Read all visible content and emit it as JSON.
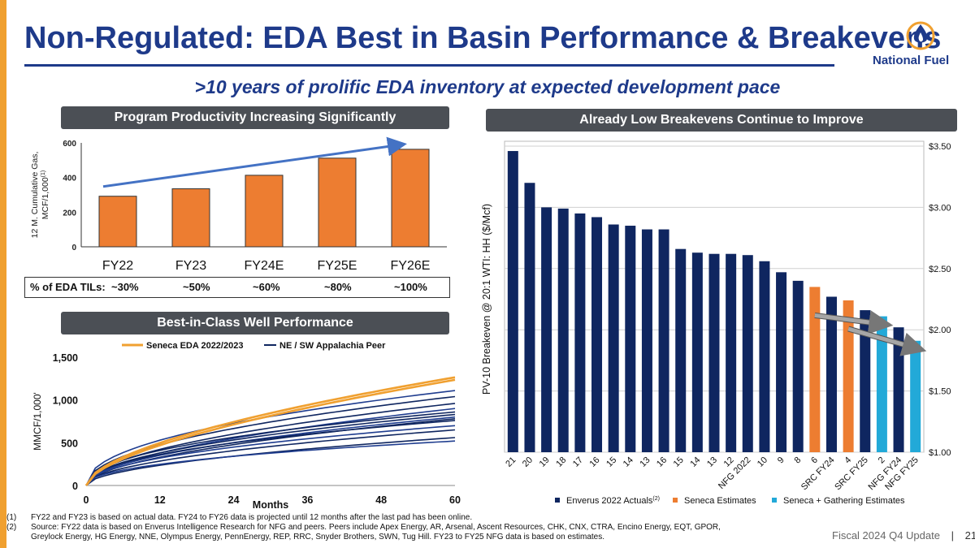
{
  "title": "Non-Regulated: EDA Best in Basin Performance & Breakevens",
  "subtitle": ">10 years of prolific EDA inventory at expected development pace",
  "logo_text": "National Fuel",
  "colors": {
    "navy": "#1e3a8a",
    "orange": "#f0a030",
    "bar_orange": "#ed7d31",
    "cyan": "#22a9d8",
    "dark_navy": "#0f2660"
  },
  "banners": {
    "productivity": "Program Productivity Increasing Significantly",
    "breakevens": "Already Low Breakevens Continue to Improve",
    "well_perf": "Best-in-Class Well Performance"
  },
  "til": {
    "label": "% of EDA TILs:",
    "values": [
      "~30%",
      "~50%",
      "~60%",
      "~80%",
      "~100%"
    ]
  },
  "chart_data": [
    {
      "type": "bar",
      "ylabel": "12 M. Cumulative Gas, MCF/1,000",
      "ylabel_sup": "(1)",
      "categories": [
        "FY22",
        "FY23",
        "FY24E",
        "FY25E",
        "FY26E"
      ],
      "values": [
        292,
        335,
        413,
        512,
        563
      ],
      "ylim": [
        0,
        600
      ],
      "yticks": [
        "0",
        "200",
        "400",
        "600"
      ],
      "trend_arrow": true
    },
    {
      "type": "line",
      "xlabel": "Months",
      "ylabel": "MMCF/1,000'",
      "xlim": [
        0,
        60
      ],
      "ylim": [
        0,
        1500
      ],
      "xticks": [
        "0",
        "12",
        "24",
        "36",
        "48",
        "60"
      ],
      "yticks": [
        "0",
        "500",
        "1,000",
        "1,500"
      ],
      "legend": [
        "Seneca EDA 2022/2023",
        "NE / SW Appalachia Peer"
      ],
      "seneca_final": [
        1265,
        1235
      ],
      "peer_final": [
        1110,
        1040,
        960,
        900,
        860,
        830,
        800,
        780,
        760,
        700,
        650,
        560,
        520
      ]
    },
    {
      "type": "bar",
      "ylabel": "PV-10 Breakeven @ 20:1 WTI: HH ($/Mcf)",
      "ylim": [
        1.0,
        3.5
      ],
      "yticks": [
        "$1.00",
        "$1.50",
        "$2.00",
        "$2.50",
        "$3.00",
        "$3.50"
      ],
      "categories": [
        "21",
        "20",
        "19",
        "18",
        "17",
        "16",
        "15",
        "14",
        "13",
        "16",
        "15",
        "14",
        "13",
        "12",
        "NFG 2022",
        "10",
        "9",
        "8",
        "6",
        "SRC FY24",
        "4",
        "SRC FY25",
        "2",
        "NFG FY24",
        "NFG FY25"
      ],
      "values": [
        3.46,
        3.2,
        3.0,
        2.99,
        2.95,
        2.92,
        2.86,
        2.85,
        2.82,
        2.82,
        2.66,
        2.63,
        2.62,
        2.62,
        2.61,
        2.56,
        2.47,
        2.4,
        2.35,
        2.27,
        2.24,
        2.16,
        2.11,
        2.02,
        1.91
      ],
      "groups": [
        "E",
        "E",
        "E",
        "E",
        "E",
        "E",
        "E",
        "E",
        "E",
        "E",
        "E",
        "E",
        "E",
        "E",
        "E",
        "E",
        "E",
        "E",
        "S",
        "E",
        "S",
        "E",
        "G",
        "E",
        "G"
      ],
      "legend": [
        "Enverus 2022 Actuals",
        "Seneca Estimates",
        "Seneca + Gathering Estimates"
      ],
      "legend_sup": "(2)"
    }
  ],
  "footnotes": [
    {
      "num": "(1)",
      "text": "FY22 and FY23 is based on actual data. FY24 to FY26 data is projected until 12 months after the last pad has been online."
    },
    {
      "num": "(2)",
      "text": "Source: FY22 data is based on Enverus Intelligence Research for NFG and peers. Peers include Apex Energy, AR, Arsenal, Ascent Resources, CHK, CNX, CTRA, Encino Energy, EQT, GPOR, Greylock Energy, HG Energy, NNE, Olympus Energy, PennEnergy, REP, RRC, Snyder Brothers, SWN, Tug Hill. FY23 to FY25 NFG data is based on estimates."
    }
  ],
  "footer": {
    "label": "Fiscal 2024 Q4 Update",
    "separator": "|",
    "page": "21"
  }
}
